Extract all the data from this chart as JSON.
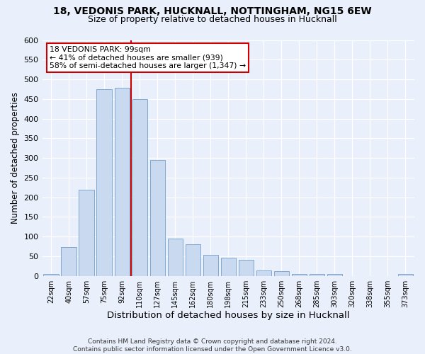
{
  "title_line1": "18, VEDONIS PARK, HUCKNALL, NOTTINGHAM, NG15 6EW",
  "title_line2": "Size of property relative to detached houses in Hucknall",
  "xlabel": "Distribution of detached houses by size in Hucknall",
  "ylabel": "Number of detached properties",
  "categories": [
    "22sqm",
    "40sqm",
    "57sqm",
    "75sqm",
    "92sqm",
    "110sqm",
    "127sqm",
    "145sqm",
    "162sqm",
    "180sqm",
    "198sqm",
    "215sqm",
    "233sqm",
    "250sqm",
    "268sqm",
    "285sqm",
    "303sqm",
    "320sqm",
    "338sqm",
    "355sqm",
    "373sqm"
  ],
  "values": [
    5,
    73,
    220,
    475,
    478,
    450,
    295,
    95,
    80,
    53,
    47,
    40,
    13,
    12,
    5,
    5,
    5,
    0,
    0,
    0,
    5
  ],
  "bar_color": "#c9d9f0",
  "bar_edge_color": "#7fa8d0",
  "vline_x": 4.5,
  "vline_color": "#cc0000",
  "annotation_text": "18 VEDONIS PARK: 99sqm\n← 41% of detached houses are smaller (939)\n58% of semi-detached houses are larger (1,347) →",
  "annotation_box_color": "#ffffff",
  "annotation_box_edge": "#cc0000",
  "ylim": [
    0,
    600
  ],
  "yticks": [
    0,
    50,
    100,
    150,
    200,
    250,
    300,
    350,
    400,
    450,
    500,
    550,
    600
  ],
  "bg_color": "#eaf0fb",
  "footer_text": "Contains HM Land Registry data © Crown copyright and database right 2024.\nContains public sector information licensed under the Open Government Licence v3.0.",
  "title_fontsize": 10,
  "subtitle_fontsize": 9,
  "ylabel_fontsize": 8.5,
  "xlabel_fontsize": 9.5
}
